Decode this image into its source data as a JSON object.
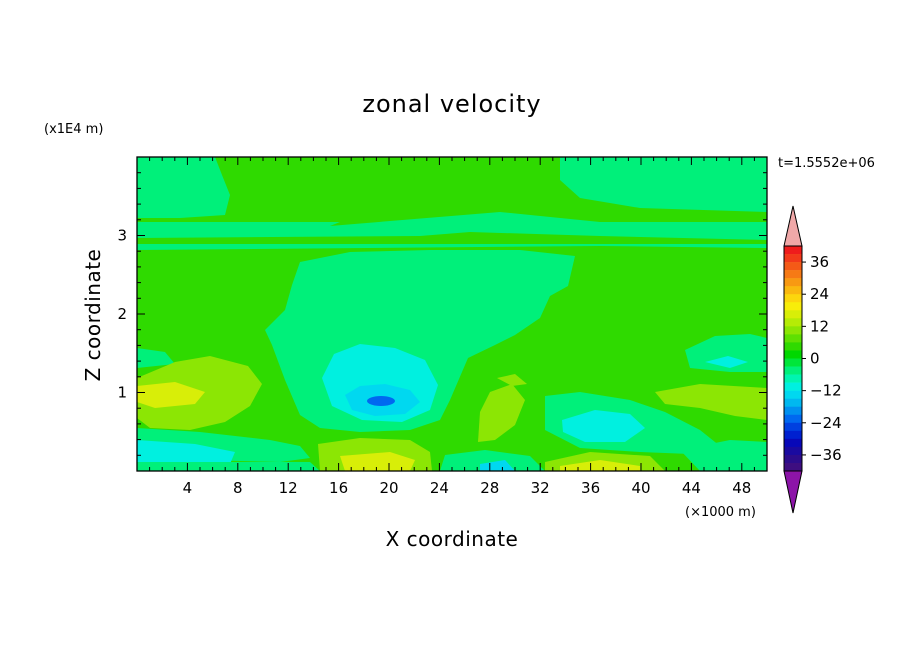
{
  "chart_data": {
    "type": "contour",
    "title": "zonal velocity",
    "xlabel": "X coordinate",
    "ylabel": "Z coordinate",
    "x_unit": "(×1000 m)",
    "y_unit": "(x1E4 m)",
    "time_label": "t=1.5552e+06",
    "xlim": [
      0,
      50
    ],
    "ylim": [
      0,
      4
    ],
    "x_ticks": [
      4,
      8,
      12,
      16,
      20,
      24,
      28,
      32,
      36,
      40,
      44,
      48
    ],
    "y_ticks": [
      1,
      2,
      3
    ],
    "colorbar": {
      "levels": [
        -42,
        -39,
        -36,
        -33,
        -30,
        -27,
        -24,
        -21,
        -18,
        -15,
        -12,
        -9,
        -6,
        -3,
        0,
        3,
        6,
        9,
        12,
        15,
        18,
        21,
        24,
        27,
        30,
        33,
        36,
        39,
        42
      ],
      "tick_labels": [
        36,
        24,
        12,
        0,
        -12,
        -24,
        -36
      ],
      "colors": [
        "#ef1c1c",
        "#f23a1a",
        "#f45a17",
        "#f67a15",
        "#f89912",
        "#fab80f",
        "#fcd60d",
        "#f8ed0a",
        "#d8ee08",
        "#b5ec06",
        "#8ce604",
        "#5ee002",
        "#2fda00",
        "#00d800",
        "#00e63a",
        "#00f07a",
        "#00f5b0",
        "#00f0e0",
        "#00d8f0",
        "#00b8f0",
        "#0090f0",
        "#0068f0",
        "#0040e0",
        "#0020d0",
        "#0808b8",
        "#1a0aa0",
        "#2c0c8c",
        "#3e0e80"
      ],
      "extend_colors": {
        "max": "#f0a8a8",
        "min": "#8c14a8"
      }
    },
    "regions": [
      {
        "name": "background",
        "value": 2,
        "color": "#2fda00"
      },
      {
        "name": "upper band",
        "z_range": [
          2.9,
          3.2
        ],
        "value": -2,
        "color": "#00f07a"
      },
      {
        "name": "central plume",
        "x_range": [
          13,
          29
        ],
        "z_range": [
          0.6,
          2.8
        ],
        "value": -3,
        "color": "#00f07a"
      },
      {
        "name": "central core",
        "x_center": 19,
        "z_center": 0.9,
        "value": -10,
        "color": "#00f0e0"
      },
      {
        "name": "central min",
        "x_center": 19,
        "z_center": 0.9,
        "value": -13,
        "color": "#0090f0"
      },
      {
        "name": "left positive lobe",
        "x_center": 4,
        "z_center": 1.0,
        "value": 8,
        "color": "#d8ee08"
      },
      {
        "name": "bottom positive near 36",
        "x_center": 36,
        "z_center": 0.05,
        "value": 10,
        "color": "#d8ee08"
      },
      {
        "name": "right core",
        "x_center": 36,
        "z_center": 0.55,
        "value": -8,
        "color": "#00f0e0"
      }
    ]
  }
}
